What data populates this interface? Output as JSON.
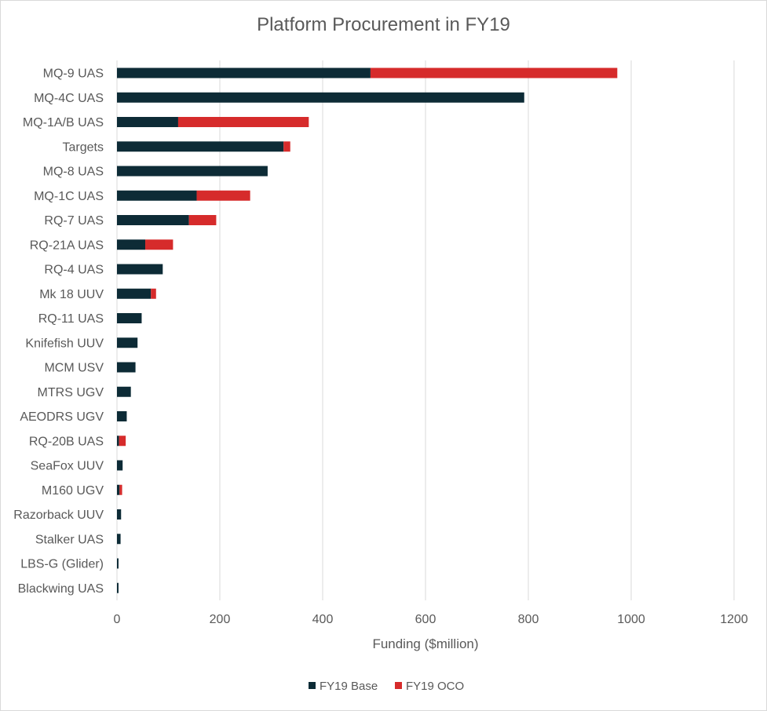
{
  "chart_data": {
    "type": "bar",
    "orientation": "horizontal",
    "stacked": true,
    "title": "Platform Procurement in FY19",
    "xlabel": "Funding ($million)",
    "ylabel": "",
    "xlim": [
      0,
      1200
    ],
    "xticks": [
      0,
      200,
      400,
      600,
      800,
      1000,
      1200
    ],
    "grid": true,
    "legend_position": "bottom",
    "categories": [
      "MQ-9 UAS",
      "MQ-4C UAS",
      "MQ-1A/B UAS",
      "Targets",
      "MQ-8 UAS",
      "MQ-1C UAS",
      "RQ-7 UAS",
      "RQ-21A UAS",
      "RQ-4 UAS",
      "Mk 18 UUV",
      "RQ-11 UAS",
      "Knifefish UUV",
      "MCM USV",
      "MTRS UGV",
      "AEODRS UGV",
      "RQ-20B UAS",
      "SeaFox UUV",
      "M160 UGV",
      "Razorback UUV",
      "Stalker UAS",
      "LBS-G (Glider)",
      "Blackwing UAS"
    ],
    "series": [
      {
        "name": "FY19 Base",
        "color": "#0d2b36",
        "values": [
          493,
          792,
          119,
          324,
          293,
          155,
          140,
          55,
          89,
          66,
          48,
          40,
          36,
          27,
          19,
          4,
          11,
          5,
          8,
          7,
          3,
          3
        ]
      },
      {
        "name": "FY19 OCO",
        "color": "#d62b2b",
        "values": [
          480,
          0,
          254,
          13,
          0,
          104,
          53,
          54,
          0,
          10,
          0,
          0,
          0,
          0,
          0,
          13,
          0,
          5,
          0,
          0,
          0,
          0
        ]
      }
    ]
  }
}
